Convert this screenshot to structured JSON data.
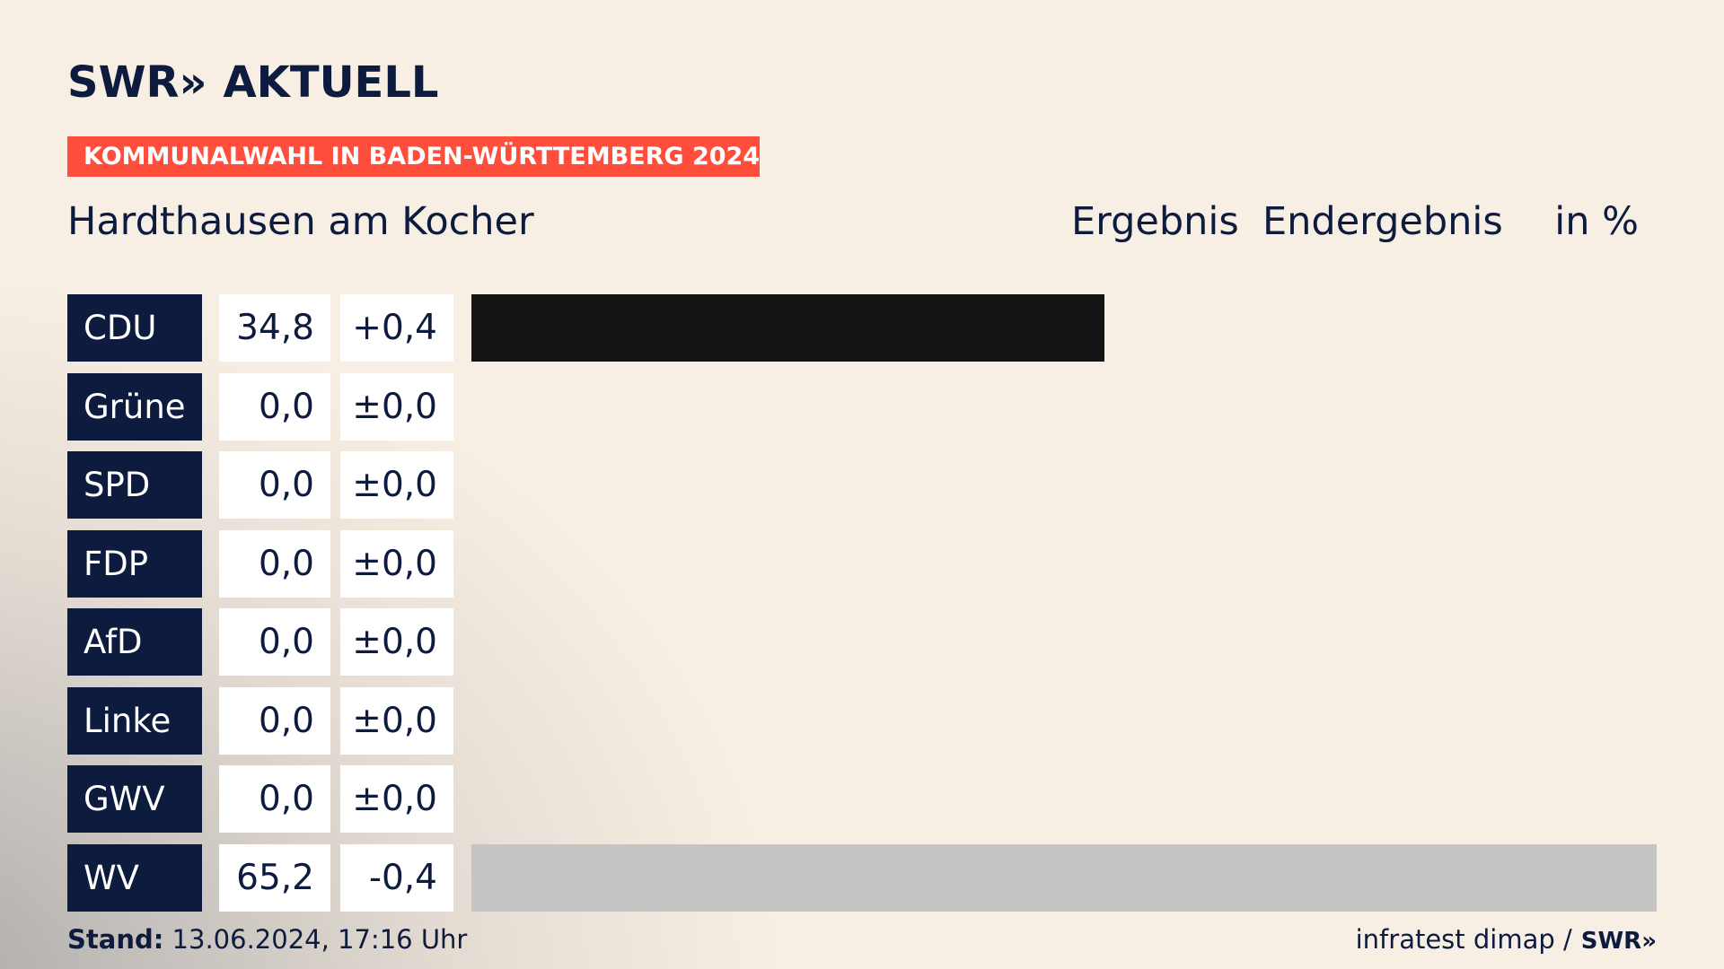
{
  "header": {
    "logo_left": "SWR»",
    "logo_right": "AKTUELL",
    "banner": "KOMMUNALWAHL IN BADEN-WÜRTTEMBERG 2024",
    "place": "Hardthausen am Kocher",
    "col_result": "Ergebnis",
    "col_status": "Endergebnis",
    "col_unit": "in %"
  },
  "colors": {
    "navy": "#0d1b3e",
    "banner_red": "#ff4f3c",
    "cdu_bar": "#141414",
    "wv_bar": "#c4c4c4"
  },
  "chart_data": {
    "type": "bar",
    "orientation": "horizontal",
    "unit": "%",
    "categories": [
      "CDU",
      "Grüne",
      "SPD",
      "FDP",
      "AfD",
      "Linke",
      "GWV",
      "WV"
    ],
    "values": [
      34.8,
      0.0,
      0.0,
      0.0,
      0.0,
      0.0,
      0.0,
      65.2
    ],
    "values_text": [
      "34,8",
      "0,0",
      "0,0",
      "0,0",
      "0,0",
      "0,0",
      "0,0",
      "65,2"
    ],
    "change_text": [
      "+0,4",
      "±0,0",
      "±0,0",
      "±0,0",
      "±0,0",
      "±0,0",
      "±0,0",
      "-0,4"
    ],
    "bar_colors": [
      "#141414",
      "#141414",
      "#141414",
      "#141414",
      "#141414",
      "#141414",
      "#141414",
      "#c4c4c4"
    ],
    "xlim": [
      0,
      65.2
    ]
  },
  "footer": {
    "stand_label": "Stand:",
    "stand_value": "13.06.2024, 17:16 Uhr",
    "source": "infratest dimap /",
    "source_logo": "SWR»"
  }
}
